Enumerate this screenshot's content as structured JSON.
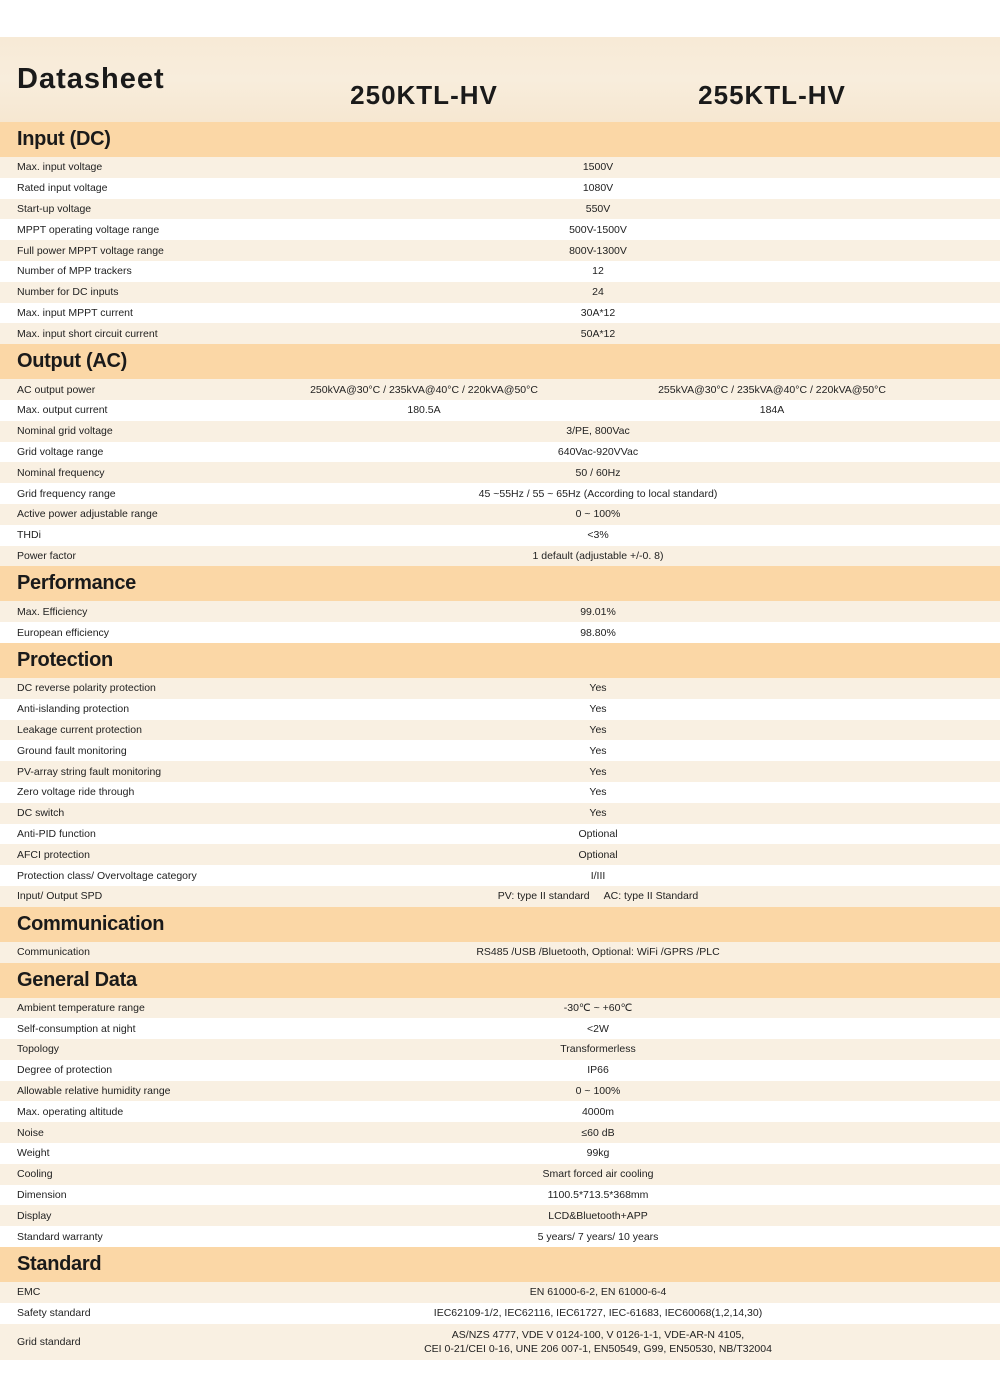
{
  "title": "Datasheet",
  "models": [
    "250KTL-HV",
    "255KTL-HV"
  ],
  "colors": {
    "section_header": "#fbd7a6",
    "row_alt": "#f9f0e2",
    "header_bg": "#f7ead6"
  },
  "sections": [
    {
      "title": "Input (DC)",
      "rows": [
        {
          "label": "Max. input voltage",
          "values": [
            "1500V"
          ]
        },
        {
          "label": "Rated input voltage",
          "values": [
            "1080V"
          ]
        },
        {
          "label": "Start-up voltage",
          "values": [
            "550V"
          ]
        },
        {
          "label": "MPPT operating voltage range",
          "values": [
            "500V-1500V"
          ]
        },
        {
          "label": "Full power MPPT voltage range",
          "values": [
            "800V-1300V"
          ]
        },
        {
          "label": "Number of MPP trackers",
          "values": [
            "12"
          ]
        },
        {
          "label": "Number for DC inputs",
          "values": [
            "24"
          ]
        },
        {
          "label": "Max. input MPPT current",
          "values": [
            "30A*12"
          ]
        },
        {
          "label": "Max. input short circuit current",
          "values": [
            "50A*12"
          ]
        }
      ]
    },
    {
      "title": "Output (AC)",
      "rows": [
        {
          "label": "AC output power",
          "values": [
            "250kVA@30°C / 235kVA@40°C / 220kVA@50°C",
            "255kVA@30°C / 235kVA@40°C / 220kVA@50°C"
          ]
        },
        {
          "label": "Max. output current",
          "values": [
            "180.5A",
            "184A"
          ]
        },
        {
          "label": "Nominal grid voltage",
          "values": [
            "3/PE, 800Vac"
          ]
        },
        {
          "label": "Grid voltage range",
          "values": [
            "640Vac-920VVac"
          ]
        },
        {
          "label": "Nominal frequency",
          "values": [
            "50 / 60Hz"
          ]
        },
        {
          "label": "Grid frequency range",
          "values": [
            "45 ~55Hz / 55 ~ 65Hz (According to local standard)"
          ]
        },
        {
          "label": "Active power adjustable range",
          "values": [
            "0 ~ 100%"
          ]
        },
        {
          "label": "THDi",
          "values": [
            "<3%"
          ]
        },
        {
          "label": "Power factor",
          "values": [
            "1 default (adjustable +/-0. 8)"
          ]
        }
      ]
    },
    {
      "title": "Performance",
      "rows": [
        {
          "label": "Max. Efficiency",
          "values": [
            "99.01%"
          ]
        },
        {
          "label": "European efficiency",
          "values": [
            "98.80%"
          ]
        }
      ]
    },
    {
      "title": "Protection",
      "rows": [
        {
          "label": "DC reverse polarity protection",
          "values": [
            "Yes"
          ]
        },
        {
          "label": "Anti-islanding protection",
          "values": [
            "Yes"
          ]
        },
        {
          "label": "Leakage current protection",
          "values": [
            "Yes"
          ]
        },
        {
          "label": "Ground fault monitoring",
          "values": [
            "Yes"
          ]
        },
        {
          "label": "PV-array string fault monitoring",
          "values": [
            "Yes"
          ]
        },
        {
          "label": "Zero voltage ride through",
          "values": [
            "Yes"
          ]
        },
        {
          "label": "DC switch",
          "values": [
            "Yes"
          ]
        },
        {
          "label": "Anti-PID function",
          "values": [
            "Optional"
          ]
        },
        {
          "label": "AFCI protection",
          "values": [
            "Optional"
          ]
        },
        {
          "label": "Protection class/ Overvoltage category",
          "values": [
            "I/III"
          ]
        },
        {
          "label": "Input/ Output SPD",
          "values": [
            "PV: type II standard     AC: type II Standard"
          ]
        }
      ]
    },
    {
      "title": "Communication",
      "rows": [
        {
          "label": "Communication",
          "values": [
            "RS485 /USB /Bluetooth, Optional: WiFi /GPRS /PLC"
          ]
        }
      ]
    },
    {
      "title": "General Data",
      "rows": [
        {
          "label": "Ambient temperature range",
          "values": [
            "-30℃ ~ +60℃"
          ]
        },
        {
          "label": "Self-consumption at night",
          "values": [
            "<2W"
          ]
        },
        {
          "label": "Topology",
          "values": [
            "Transformerless"
          ]
        },
        {
          "label": "Degree of protection",
          "values": [
            "IP66"
          ]
        },
        {
          "label": "Allowable relative humidity range",
          "values": [
            "0 ~ 100%"
          ]
        },
        {
          "label": "Max. operating altitude",
          "values": [
            "4000m"
          ]
        },
        {
          "label": "Noise",
          "values": [
            "≤60 dB"
          ]
        },
        {
          "label": "Weight",
          "values": [
            "99kg"
          ]
        },
        {
          "label": "Cooling",
          "values": [
            "Smart forced air cooling"
          ]
        },
        {
          "label": "Dimension",
          "values": [
            "1100.5*713.5*368mm"
          ]
        },
        {
          "label": "Display",
          "values": [
            "LCD&Bluetooth+APP"
          ]
        },
        {
          "label": "Standard warranty",
          "values": [
            "5 years/ 7 years/ 10 years"
          ]
        }
      ]
    },
    {
      "title": "Standard",
      "rows": [
        {
          "label": "EMC",
          "values": [
            "EN 61000-6-2, EN 61000-6-4"
          ]
        },
        {
          "label": "Safety standard",
          "values": [
            "IEC62109-1/2, IEC62116, IEC61727, IEC-61683, IEC60068(1,2,14,30)"
          ]
        },
        {
          "label": "Grid standard",
          "values": [
            "AS/NZS 4777, VDE V 0124-100, V 0126-1-1, VDE-AR-N 4105,\nCEI 0-21/CEI 0-16, UNE 206 007-1, EN50549, G99, EN50530, NB/T32004"
          ]
        }
      ]
    }
  ]
}
